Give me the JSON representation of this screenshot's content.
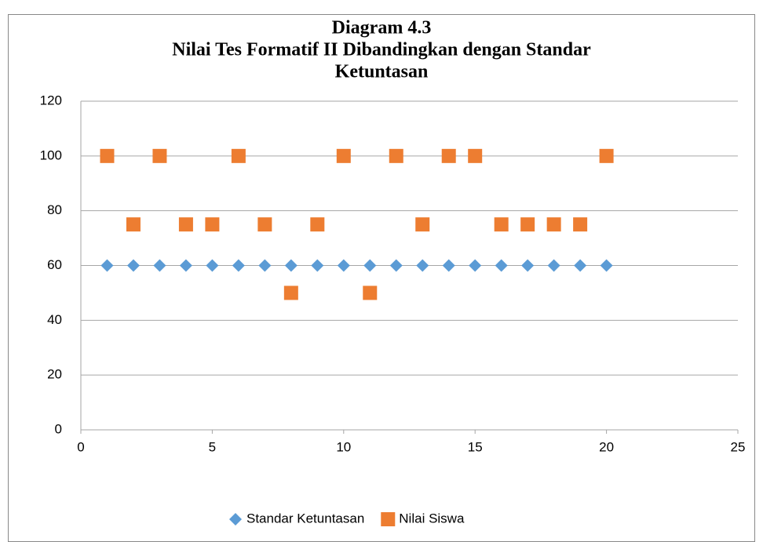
{
  "chart_data": {
    "type": "scatter",
    "title": [
      "Diagram 4.3",
      "Nilai Tes Formatif II Dibandingkan dengan Standar",
      "Ketuntasan"
    ],
    "x": [
      1,
      2,
      3,
      4,
      5,
      6,
      7,
      8,
      9,
      10,
      11,
      12,
      13,
      14,
      15,
      16,
      17,
      18,
      19,
      20
    ],
    "series": [
      {
        "name": "Standar Ketuntasan",
        "color": "#5b9bd5",
        "marker": "diamond",
        "values": [
          60,
          60,
          60,
          60,
          60,
          60,
          60,
          60,
          60,
          60,
          60,
          60,
          60,
          60,
          60,
          60,
          60,
          60,
          60,
          60
        ]
      },
      {
        "name": "Nilai Siswa",
        "color": "#ed7d31",
        "marker": "square",
        "values": [
          100,
          75,
          100,
          75,
          75,
          100,
          75,
          50,
          75,
          100,
          50,
          100,
          75,
          100,
          100,
          75,
          75,
          75,
          75,
          100
        ]
      }
    ],
    "xlim": [
      0,
      25
    ],
    "xticks": [
      0,
      5,
      10,
      15,
      20,
      25
    ],
    "ylim": [
      0,
      120
    ],
    "yticks": [
      0,
      20,
      40,
      60,
      80,
      100,
      120
    ],
    "grid": true,
    "legend": "bottom"
  }
}
